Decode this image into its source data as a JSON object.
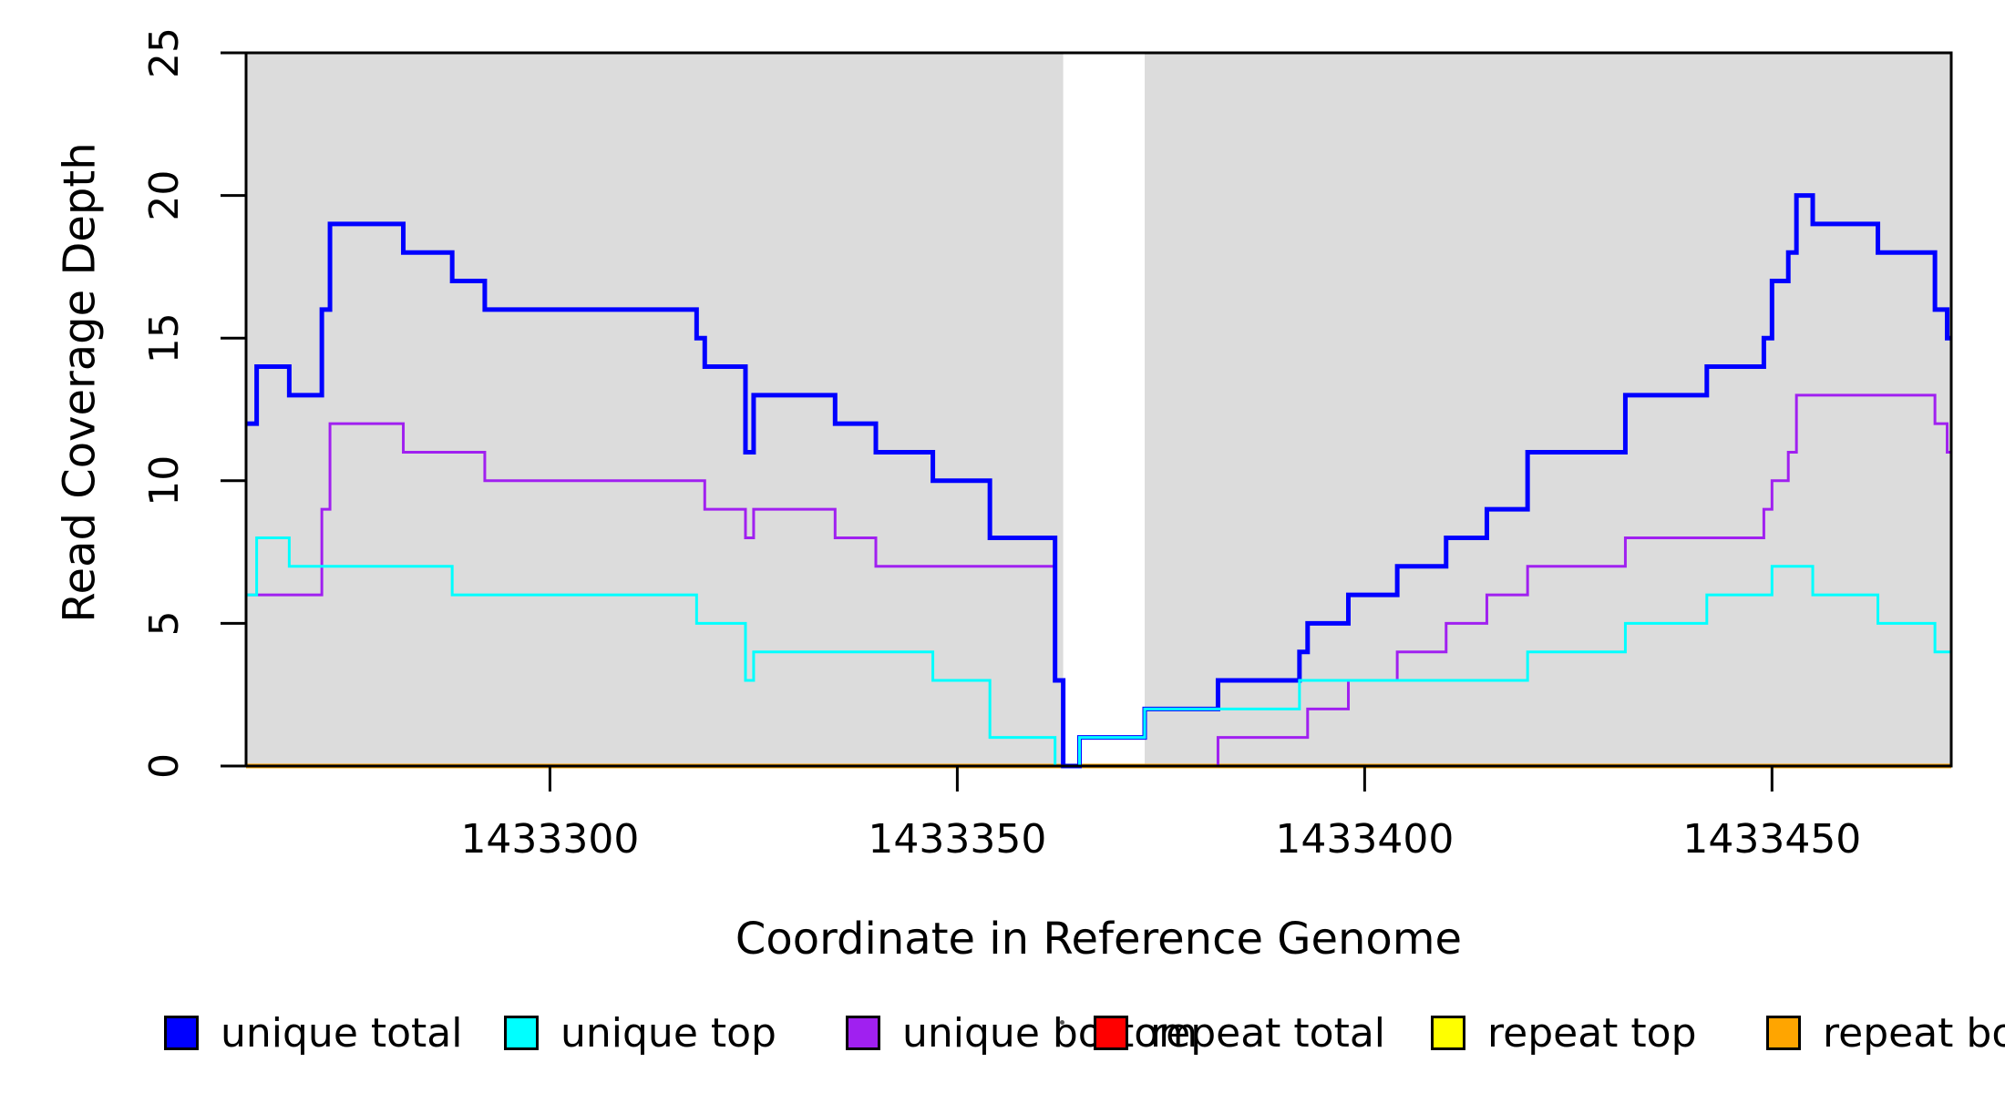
{
  "chart_data": {
    "type": "line",
    "step": true,
    "title": "",
    "xlabel": "Coordinate in Reference Genome",
    "ylabel": "Read Coverage Depth",
    "xlim": [
      1433262.7,
      1433472.0
    ],
    "ylim": [
      0,
      25
    ],
    "x_ticks": [
      1433300,
      1433350,
      1433400,
      1433450
    ],
    "y_ticks": [
      0,
      5,
      10,
      15,
      20,
      25
    ],
    "grid": false,
    "legend_position": "bottom",
    "plot_bg_color": "#ffffff",
    "shaded_band_color": "#dcdcdc",
    "shaded_bands": [
      [
        1433262.7,
        1433363.0
      ],
      [
        1433373.0,
        1433472.0
      ]
    ],
    "white_gap_band": [
      1433363.0,
      1433373.0
    ],
    "series": [
      {
        "name": "repeat total",
        "color": "#ff0000",
        "width": 3,
        "points": [
          [
            1433262.7,
            0
          ]
        ]
      },
      {
        "name": "repeat top",
        "color": "#ffff00",
        "width": 3,
        "points": [
          [
            1433262.7,
            0
          ]
        ]
      },
      {
        "name": "repeat bottom",
        "color": "#ffa500",
        "width": 5,
        "points": [
          [
            1433262.7,
            0
          ]
        ]
      },
      {
        "name": "unique bottom",
        "color": "#a020f0",
        "width": 3,
        "points": [
          [
            1433262.7,
            6
          ],
          [
            1433272,
            9
          ],
          [
            1433273,
            12
          ],
          [
            1433282,
            11
          ],
          [
            1433292,
            10
          ],
          [
            1433319,
            9
          ],
          [
            1433324,
            8
          ],
          [
            1433325,
            9
          ],
          [
            1433335,
            8
          ],
          [
            1433340,
            7
          ],
          [
            1433362,
            3
          ],
          [
            1433363,
            0
          ],
          [
            1433382,
            1
          ],
          [
            1433393,
            2
          ],
          [
            1433398,
            3
          ],
          [
            1433404,
            4
          ],
          [
            1433410,
            5
          ],
          [
            1433415,
            6
          ],
          [
            1433420,
            7
          ],
          [
            1433432,
            8
          ],
          [
            1433449,
            9
          ],
          [
            1433450,
            10
          ],
          [
            1433452,
            11
          ],
          [
            1433453,
            13
          ],
          [
            1433470,
            12
          ],
          [
            1433471.5,
            11
          ]
        ]
      },
      {
        "name": "unique total",
        "color": "#0000ff",
        "width": 5,
        "points": [
          [
            1433262.7,
            12
          ],
          [
            1433264,
            14
          ],
          [
            1433268,
            13
          ],
          [
            1433272,
            16
          ],
          [
            1433273,
            19
          ],
          [
            1433282,
            18
          ],
          [
            1433288,
            17
          ],
          [
            1433292,
            16
          ],
          [
            1433318,
            15
          ],
          [
            1433319,
            14
          ],
          [
            1433324,
            11
          ],
          [
            1433325,
            13
          ],
          [
            1433335,
            12
          ],
          [
            1433340,
            11
          ],
          [
            1433347,
            10
          ],
          [
            1433354,
            8
          ],
          [
            1433362,
            3
          ],
          [
            1433363,
            0
          ],
          [
            1433365,
            1
          ],
          [
            1433373,
            2
          ],
          [
            1433382,
            3
          ],
          [
            1433392,
            4
          ],
          [
            1433393,
            5
          ],
          [
            1433398,
            6
          ],
          [
            1433404,
            7
          ],
          [
            1433410,
            8
          ],
          [
            1433415,
            9
          ],
          [
            1433420,
            11
          ],
          [
            1433432,
            13
          ],
          [
            1433442,
            14
          ],
          [
            1433449,
            15
          ],
          [
            1433450,
            17
          ],
          [
            1433452,
            18
          ],
          [
            1433453,
            20
          ],
          [
            1433455,
            19
          ],
          [
            1433463,
            18
          ],
          [
            1433470,
            16
          ],
          [
            1433471.5,
            15
          ]
        ]
      },
      {
        "name": "unique top",
        "color": "#00ffff",
        "width": 3,
        "points": [
          [
            1433262.7,
            6
          ],
          [
            1433264,
            8
          ],
          [
            1433268,
            7
          ],
          [
            1433288,
            6
          ],
          [
            1433318,
            5
          ],
          [
            1433324,
            3
          ],
          [
            1433325,
            4
          ],
          [
            1433347,
            3
          ],
          [
            1433354,
            1
          ],
          [
            1433362,
            0
          ],
          [
            1433365,
            1
          ],
          [
            1433373,
            2
          ],
          [
            1433392,
            3
          ],
          [
            1433420,
            4
          ],
          [
            1433432,
            5
          ],
          [
            1433442,
            6
          ],
          [
            1433450,
            7
          ],
          [
            1433455,
            6
          ],
          [
            1433463,
            5
          ],
          [
            1433470,
            4
          ]
        ]
      }
    ],
    "legend": {
      "items": [
        {
          "label": "unique total",
          "color": "#0000ff"
        },
        {
          "label": "unique top",
          "color": "#00ffff"
        },
        {
          "label": "unique bottom",
          "color": "#a020f0"
        },
        {
          "label": "repeat total",
          "color": "#ff0000"
        },
        {
          "label": "repeat top",
          "color": "#ffff00"
        },
        {
          "label": "repeat bottom",
          "color": "#ffa500"
        }
      ]
    }
  }
}
